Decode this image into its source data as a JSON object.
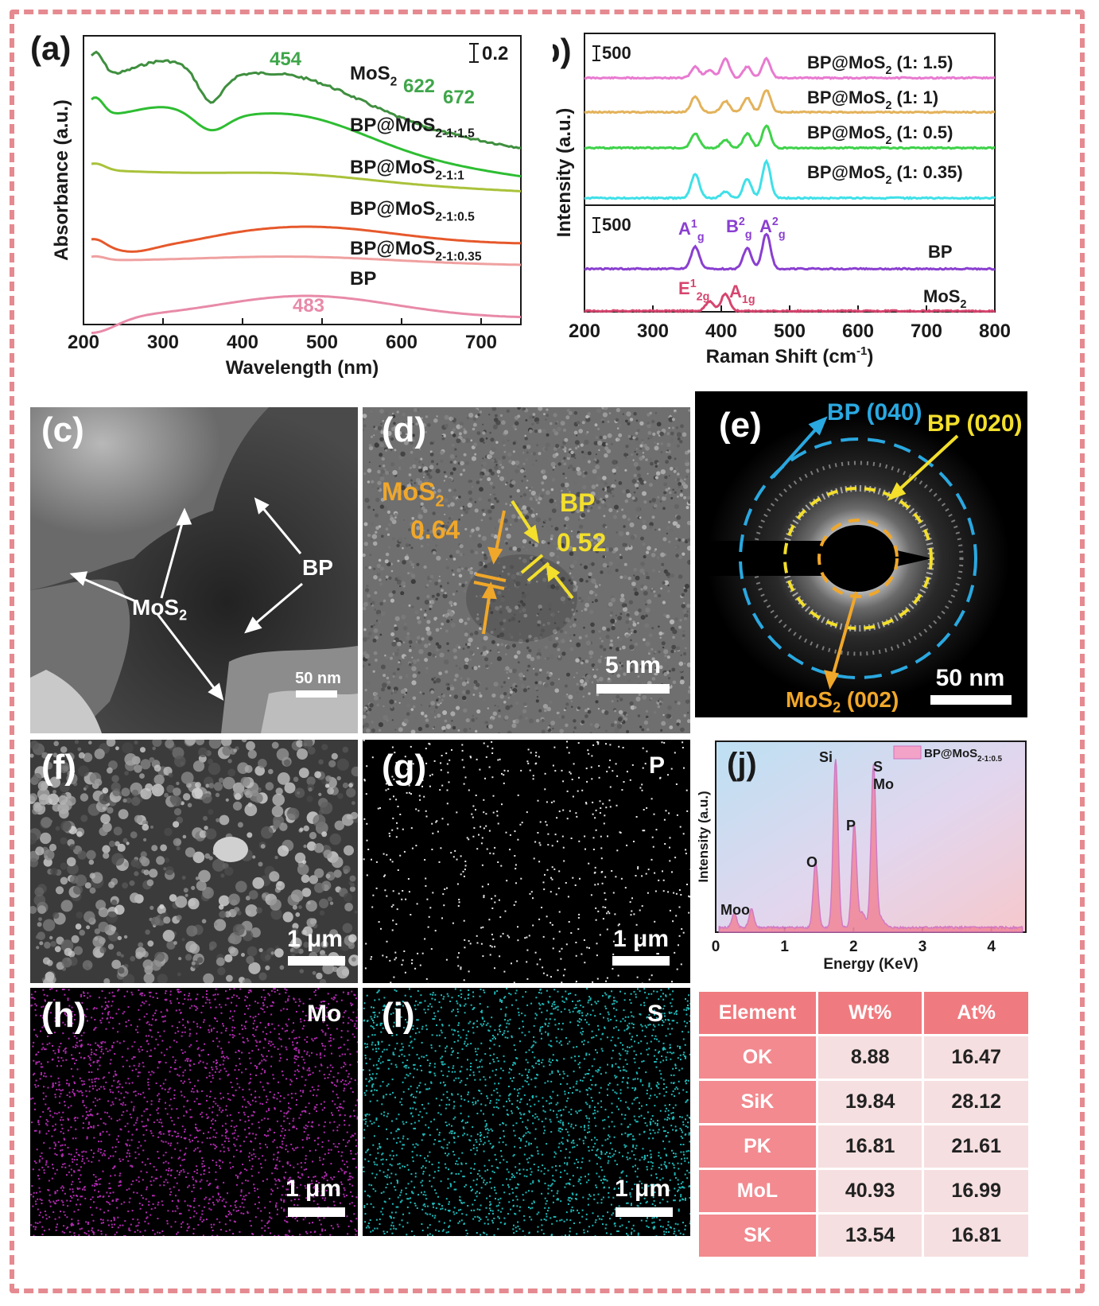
{
  "panel_labels": {
    "a": "(a)",
    "b": "(b)",
    "c": "(c)",
    "d": "(d)",
    "e": "(e)",
    "f": "(f)",
    "g": "(g)",
    "h": "(h)",
    "i": "(i)",
    "j": "(j)"
  },
  "chart_data": [
    {
      "panel": "a",
      "type": "line",
      "xlabel": "Wavelength (nm)",
      "ylabel": "Absorbance (a.u.)",
      "xlim": [
        200,
        750
      ],
      "xticks": [
        "200",
        "300",
        "400",
        "500",
        "600",
        "700"
      ],
      "scale_bar": "0.2",
      "series": [
        {
          "name": "MoS2",
          "label_html": "MoS<sub>2</sub>",
          "color": "#3f8f3f"
        },
        {
          "name": "BP@MoS2-1:1.5",
          "color": "#2ebd32"
        },
        {
          "name": "BP@MoS2-1:1",
          "color": "#a9c23a"
        },
        {
          "name": "BP@MoS2-1:0.5",
          "color": "#e6582b"
        },
        {
          "name": "BP@MoS2-1:0.35",
          "color": "#f0a0a0"
        },
        {
          "name": "BP",
          "color": "#e88aa8"
        }
      ],
      "series_labels": [
        {
          "main": "MoS",
          "sub": "2"
        },
        {
          "main": "BP@MoS",
          "sub": "2-1:1.5"
        },
        {
          "main": "BP@MoS",
          "sub": "2-1:1"
        },
        {
          "main": "BP@MoS",
          "sub": "2-1:0.5"
        },
        {
          "main": "BP@MoS",
          "sub": "2-1:0.35"
        },
        {
          "main": "BP",
          "sub": ""
        }
      ],
      "annotations": [
        {
          "text": "454",
          "x": 454,
          "color": "#3fa64a"
        },
        {
          "text": "622",
          "x": 622,
          "color": "#3fa64a"
        },
        {
          "text": "672",
          "x": 672,
          "color": "#3fa64a"
        },
        {
          "text": "483",
          "x": 483,
          "color": "#e88aa8"
        }
      ]
    },
    {
      "panel": "b",
      "type": "line",
      "xlabel": "Raman Shift (cm-1)",
      "ylabel": "Intensity (a.u.)",
      "xlim": [
        200,
        800
      ],
      "xticks": [
        "200",
        "300",
        "400",
        "500",
        "600",
        "700",
        "800"
      ],
      "scale_bar_top": "500",
      "scale_bar_bottom": "500",
      "series": [
        {
          "name": "BP@MoS2 (1: 1.5)",
          "color": "#e87ad0"
        },
        {
          "name": "BP@MoS2 (1: 1)",
          "color": "#e3b25a"
        },
        {
          "name": "BP@MoS2 (1: 0.5)",
          "color": "#3fd24a"
        },
        {
          "name": "BP@MoS2 (1: 0.35)",
          "color": "#3fe0e8"
        },
        {
          "name": "BP",
          "color": "#8a3fd0"
        },
        {
          "name": "MoS2",
          "color": "#d6456e"
        }
      ],
      "series_labels": [
        {
          "pre": "BP@MoS",
          "sub": "2",
          "post": " (1: 1.5)"
        },
        {
          "pre": "BP@MoS",
          "sub": "2",
          "post": " (1: 1)"
        },
        {
          "pre": "BP@MoS",
          "sub": "2",
          "post": " (1: 0.5)"
        },
        {
          "pre": "BP@MoS",
          "sub": "2",
          "post": " (1: 0.35)"
        },
        {
          "pre": "BP",
          "sub": "",
          "post": ""
        },
        {
          "pre": "MoS",
          "sub": "2",
          "post": ""
        }
      ],
      "peaks": {
        "A1g_BP": 362,
        "B2g_BP": 438,
        "A2g_BP": 466,
        "E12g_MoS2": 383,
        "A1g_MoS2": 406
      },
      "peak_labels": [
        {
          "main": "A",
          "sup": "1",
          "sub": "g",
          "color": "#8a3fd0"
        },
        {
          "main": "B",
          "sup": "2",
          "sub": "g",
          "color": "#8a3fd0"
        },
        {
          "main": "A",
          "sup": "2",
          "sub": "g",
          "color": "#8a3fd0"
        },
        {
          "main": "E",
          "sup": "1",
          "sub": "2g",
          "color": "#d6456e"
        },
        {
          "main": "A",
          "sup": "",
          "sub": "1g",
          "color": "#d6456e"
        }
      ]
    },
    {
      "panel": "j",
      "type": "area",
      "xlabel": "Energy (KeV)",
      "ylabel": "Intensity (a.u.)",
      "xlim": [
        0,
        4.5
      ],
      "xticks": [
        "0",
        "1",
        "2",
        "3",
        "4"
      ],
      "legend": {
        "main": "BP@MoS",
        "sub": "2-1:0.5"
      },
      "peaks": [
        {
          "label": "Mo",
          "x": 0.27,
          "rel": 0.08
        },
        {
          "label": "O",
          "x": 0.52,
          "rel": 0.1
        },
        {
          "label": "O",
          "x": 1.45,
          "rel": 0.36
        },
        {
          "label": "Si",
          "x": 1.74,
          "rel": 0.93
        },
        {
          "label": "P",
          "x": 2.01,
          "rel": 0.57
        },
        {
          "label": "S Mo",
          "x": 2.29,
          "rel": 0.9
        }
      ],
      "peak_texts": {
        "mo_o": "Moo",
        "o": "O",
        "si": "Si",
        "p": "P",
        "s": "S",
        "mo": "Mo"
      }
    }
  ],
  "micrographs": {
    "c": {
      "labels": {
        "mos2": "MoS",
        "mos2_sub": "2",
        "bp": "BP"
      },
      "scale": "50 nm"
    },
    "d": {
      "mos2": "MoS",
      "mos2_sub": "2",
      "mos2_d": "0.64",
      "bp": "BP",
      "bp_d": "0.52",
      "scale": "5 nm"
    },
    "e": {
      "bp040": "BP (040)",
      "bp020": "BP (020)",
      "mos2_002": "MoS",
      "mos2_002_sub": "2",
      "mos2_002_post": " (002)",
      "scale": "50 nm"
    },
    "f": {
      "scale": "1 μm"
    },
    "g": {
      "element": "P",
      "scale": "1 μm"
    },
    "h": {
      "element": "Mo",
      "scale": "1 μm"
    },
    "i": {
      "element": "S",
      "scale": "1 μm"
    }
  },
  "edx_table": {
    "headers": [
      "Element",
      "Wt%",
      "At%"
    ],
    "rows": [
      [
        "OK",
        "8.88",
        "16.47"
      ],
      [
        "SiK",
        "19.84",
        "28.12"
      ],
      [
        "PK",
        "16.81",
        "21.61"
      ],
      [
        "MoL",
        "40.93",
        "16.99"
      ],
      [
        "SK",
        "13.54",
        "16.81"
      ]
    ]
  },
  "colors": {
    "frame": "#e58a90",
    "yellow": "#f3df2c",
    "orange": "#f0a72a",
    "cyan": "#2aa8e0",
    "pink_head": "#ef7b80"
  }
}
